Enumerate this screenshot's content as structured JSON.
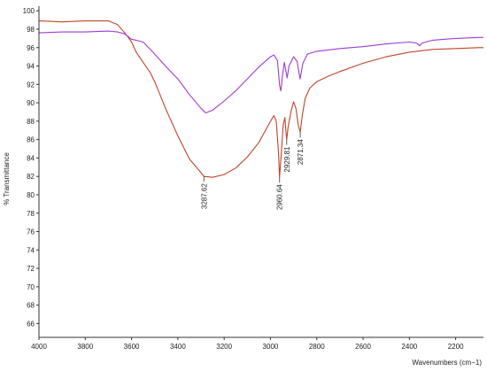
{
  "chart_data": {
    "type": "line",
    "title": "",
    "xlabel": "Wavenumbers (cm−1)",
    "ylabel": "% Transmittance",
    "xlim": [
      4000,
      2080
    ],
    "x_reversed": true,
    "ylim": [
      64.5,
      100.5
    ],
    "x_ticks": [
      4000,
      3800,
      3600,
      3400,
      3200,
      3000,
      2800,
      2600,
      2400,
      2200
    ],
    "y_ticks": [
      66,
      68,
      70,
      72,
      74,
      76,
      78,
      80,
      82,
      84,
      86,
      88,
      90,
      92,
      94,
      96,
      98,
      100
    ],
    "grid": false,
    "legend": "none",
    "series": [
      {
        "color": "#c0442a",
        "points": [
          [
            4000,
            98.9
          ],
          [
            3900,
            98.8
          ],
          [
            3800,
            98.9
          ],
          [
            3700,
            98.9
          ],
          [
            3660,
            98.5
          ],
          [
            3620,
            97.3
          ],
          [
            3600,
            96.6
          ],
          [
            3580,
            95.5
          ],
          [
            3550,
            94.4
          ],
          [
            3520,
            93.3
          ],
          [
            3500,
            92.3
          ],
          [
            3450,
            89.2
          ],
          [
            3400,
            86.4
          ],
          [
            3350,
            83.9
          ],
          [
            3300,
            82.4
          ],
          [
            3287.62,
            82.0
          ],
          [
            3250,
            81.9
          ],
          [
            3200,
            82.2
          ],
          [
            3150,
            82.9
          ],
          [
            3100,
            84.1
          ],
          [
            3050,
            85.7
          ],
          [
            3000,
            88.0
          ],
          [
            2985,
            88.6
          ],
          [
            2975,
            88.0
          ],
          [
            2965,
            84.5
          ],
          [
            2960.64,
            81.9
          ],
          [
            2953,
            84.5
          ],
          [
            2945,
            87.6
          ],
          [
            2938,
            88.4
          ],
          [
            2933,
            86.8
          ],
          [
            2929.81,
            86.0
          ],
          [
            2924,
            87.3
          ],
          [
            2910,
            89.2
          ],
          [
            2900,
            90.1
          ],
          [
            2890,
            89.4
          ],
          [
            2880,
            87.6
          ],
          [
            2871.34,
            86.8
          ],
          [
            2862,
            88.7
          ],
          [
            2850,
            90.5
          ],
          [
            2830,
            91.6
          ],
          [
            2800,
            92.3
          ],
          [
            2750,
            92.9
          ],
          [
            2700,
            93.4
          ],
          [
            2600,
            94.3
          ],
          [
            2500,
            95.0
          ],
          [
            2400,
            95.5
          ],
          [
            2300,
            95.8
          ],
          [
            2200,
            95.9
          ],
          [
            2100,
            96.0
          ],
          [
            2080,
            96.0
          ]
        ]
      },
      {
        "color": "#a03ad6",
        "points": [
          [
            4000,
            97.6
          ],
          [
            3900,
            97.7
          ],
          [
            3800,
            97.7
          ],
          [
            3700,
            97.8
          ],
          [
            3660,
            97.7
          ],
          [
            3630,
            97.5
          ],
          [
            3600,
            96.9
          ],
          [
            3580,
            96.8
          ],
          [
            3550,
            96.6
          ],
          [
            3500,
            95.3
          ],
          [
            3450,
            93.9
          ],
          [
            3400,
            92.6
          ],
          [
            3350,
            90.9
          ],
          [
            3300,
            89.4
          ],
          [
            3280,
            88.9
          ],
          [
            3250,
            89.2
          ],
          [
            3200,
            90.2
          ],
          [
            3150,
            91.3
          ],
          [
            3100,
            92.6
          ],
          [
            3050,
            93.9
          ],
          [
            3000,
            95.0
          ],
          [
            2985,
            95.2
          ],
          [
            2970,
            94.6
          ],
          [
            2960,
            91.8
          ],
          [
            2955,
            91.3
          ],
          [
            2948,
            93.0
          ],
          [
            2940,
            94.4
          ],
          [
            2932,
            93.3
          ],
          [
            2928,
            92.7
          ],
          [
            2920,
            94.0
          ],
          [
            2900,
            95.0
          ],
          [
            2885,
            94.5
          ],
          [
            2872,
            92.6
          ],
          [
            2860,
            94.3
          ],
          [
            2840,
            95.3
          ],
          [
            2800,
            95.6
          ],
          [
            2700,
            95.9
          ],
          [
            2600,
            96.1
          ],
          [
            2500,
            96.4
          ],
          [
            2400,
            96.6
          ],
          [
            2370,
            96.5
          ],
          [
            2355,
            96.2
          ],
          [
            2345,
            96.5
          ],
          [
            2300,
            96.8
          ],
          [
            2200,
            97.0
          ],
          [
            2100,
            97.1
          ],
          [
            2080,
            97.1
          ]
        ]
      }
    ],
    "annotations": [
      {
        "text": "3287.62",
        "x": 3287.62,
        "y": 82.0
      },
      {
        "text": "2960.64",
        "x": 2960.64,
        "y": 81.9
      },
      {
        "text": "2929.81",
        "x": 2929.81,
        "y": 86.0
      },
      {
        "text": "2871.34",
        "x": 2871.34,
        "y": 86.8
      }
    ]
  }
}
